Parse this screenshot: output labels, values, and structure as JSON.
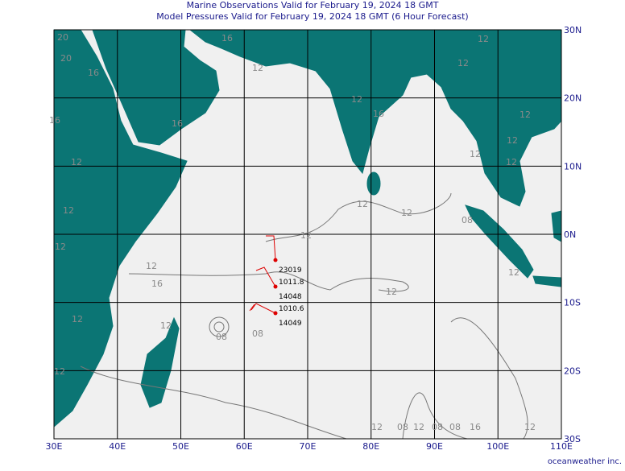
{
  "header": {
    "title": "Marine Observations Valid for February 19, 2024 18 GMT",
    "subtitle": "Model Pressures Valid for February 19, 2024 18 GMT (6 Hour Forecast)"
  },
  "lon_labels": [
    "30E",
    "40E",
    "50E",
    "60E",
    "70E",
    "80E",
    "90E",
    "100E",
    "110E"
  ],
  "lat_labels": [
    "30N",
    "20N",
    "10N",
    "0N",
    "10S",
    "20S",
    "30S"
  ],
  "stations": [
    {
      "id": "23019"
    },
    {
      "pressure": "1011.8",
      "id": "14048"
    },
    {
      "pressure": "1010.6",
      "id": "14049"
    }
  ],
  "contour_labels": [
    "20",
    "16",
    "16",
    "16",
    "12",
    "12",
    "12",
    "12",
    "16",
    "20",
    "12",
    "16",
    "12",
    "12",
    "12",
    "12",
    "12",
    "16",
    "12",
    "12",
    "12",
    "12",
    "12",
    "12",
    "12",
    "08",
    "08",
    "12",
    "12",
    "12",
    "16",
    "12",
    "08",
    "08",
    "08",
    "08",
    "12",
    "12"
  ],
  "credit": "oceanweather inc."
}
